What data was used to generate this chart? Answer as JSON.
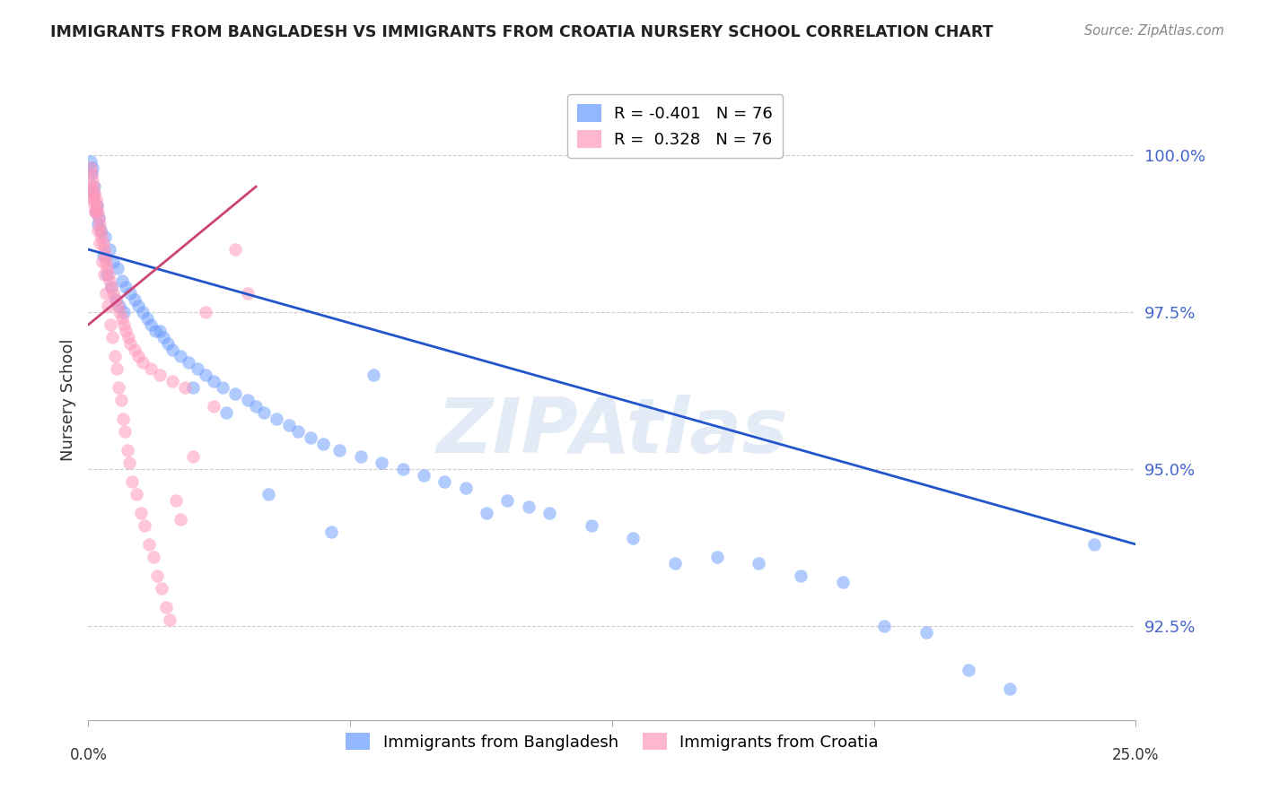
{
  "title": "IMMIGRANTS FROM BANGLADESH VS IMMIGRANTS FROM CROATIA NURSERY SCHOOL CORRELATION CHART",
  "source": "Source: ZipAtlas.com",
  "ylabel": "Nursery School",
  "yticks": [
    100.0,
    97.5,
    95.0,
    92.5
  ],
  "ytick_labels": [
    "100.0%",
    "97.5%",
    "95.0%",
    "92.5%"
  ],
  "xlim": [
    0.0,
    25.0
  ],
  "ylim": [
    91.0,
    101.2
  ],
  "blue_color": "#6699ff",
  "pink_color": "#ff99bb",
  "blue_line_color": "#2255cc",
  "pink_line_color": "#cc4477",
  "watermark": "ZIPAtlas",
  "blue_scatter_x": [
    0.1,
    0.15,
    0.2,
    0.25,
    0.3,
    0.4,
    0.5,
    0.6,
    0.7,
    0.8,
    0.9,
    1.0,
    1.1,
    1.2,
    1.3,
    1.4,
    1.5,
    1.6,
    1.7,
    1.8,
    1.9,
    2.0,
    2.2,
    2.4,
    2.6,
    2.8,
    3.0,
    3.2,
    3.5,
    3.8,
    4.0,
    4.2,
    4.5,
    4.8,
    5.0,
    5.3,
    5.6,
    6.0,
    6.5,
    7.0,
    7.5,
    8.0,
    8.5,
    9.0,
    9.5,
    10.0,
    10.5,
    11.0,
    12.0,
    13.0,
    14.0,
    15.0,
    16.0,
    17.0,
    18.0,
    19.0,
    20.0,
    21.0,
    22.0,
    0.05,
    0.08,
    0.12,
    0.18,
    0.22,
    0.35,
    0.45,
    0.55,
    0.65,
    0.75,
    0.85,
    2.5,
    3.3,
    4.3,
    5.8,
    6.8,
    24.0
  ],
  "blue_scatter_y": [
    99.8,
    99.5,
    99.2,
    99.0,
    98.8,
    98.7,
    98.5,
    98.3,
    98.2,
    98.0,
    97.9,
    97.8,
    97.7,
    97.6,
    97.5,
    97.4,
    97.3,
    97.2,
    97.2,
    97.1,
    97.0,
    96.9,
    96.8,
    96.7,
    96.6,
    96.5,
    96.4,
    96.3,
    96.2,
    96.1,
    96.0,
    95.9,
    95.8,
    95.7,
    95.6,
    95.5,
    95.4,
    95.3,
    95.2,
    95.1,
    95.0,
    94.9,
    94.8,
    94.7,
    94.3,
    94.5,
    94.4,
    94.3,
    94.1,
    93.9,
    93.5,
    93.6,
    93.5,
    93.3,
    93.2,
    92.5,
    92.4,
    91.8,
    91.5,
    99.9,
    99.7,
    99.4,
    99.1,
    98.9,
    98.4,
    98.1,
    97.9,
    97.7,
    97.6,
    97.5,
    96.3,
    95.9,
    94.6,
    94.0,
    96.5,
    93.8
  ],
  "pink_scatter_x": [
    0.05,
    0.08,
    0.1,
    0.12,
    0.15,
    0.18,
    0.2,
    0.22,
    0.25,
    0.28,
    0.3,
    0.32,
    0.35,
    0.38,
    0.4,
    0.42,
    0.45,
    0.48,
    0.5,
    0.55,
    0.6,
    0.65,
    0.7,
    0.75,
    0.8,
    0.85,
    0.9,
    0.95,
    1.0,
    1.1,
    1.2,
    1.3,
    1.5,
    1.7,
    2.0,
    2.3,
    2.8,
    3.5,
    0.13,
    0.17,
    0.23,
    0.27,
    0.33,
    0.37,
    0.43,
    0.47,
    0.53,
    0.57,
    0.63,
    0.68,
    0.73,
    0.78,
    0.83,
    0.88,
    0.93,
    0.98,
    1.05,
    1.15,
    1.25,
    1.35,
    1.45,
    1.55,
    1.65,
    1.75,
    1.85,
    1.95,
    2.1,
    2.2,
    2.5,
    3.0,
    3.8,
    0.06,
    0.09,
    0.11,
    0.14,
    0.16
  ],
  "pink_scatter_y": [
    99.8,
    99.7,
    99.6,
    99.5,
    99.4,
    99.3,
    99.2,
    99.1,
    99.0,
    98.9,
    98.8,
    98.7,
    98.6,
    98.5,
    98.4,
    98.3,
    98.2,
    98.1,
    98.0,
    97.9,
    97.8,
    97.7,
    97.6,
    97.5,
    97.4,
    97.3,
    97.2,
    97.1,
    97.0,
    96.9,
    96.8,
    96.7,
    96.6,
    96.5,
    96.4,
    96.3,
    97.5,
    98.5,
    99.3,
    99.1,
    98.8,
    98.6,
    98.3,
    98.1,
    97.8,
    97.6,
    97.3,
    97.1,
    96.8,
    96.6,
    96.3,
    96.1,
    95.8,
    95.6,
    95.3,
    95.1,
    94.8,
    94.6,
    94.3,
    94.1,
    93.8,
    93.6,
    93.3,
    93.1,
    92.8,
    92.6,
    94.5,
    94.2,
    95.2,
    96.0,
    97.8,
    99.5,
    99.4,
    99.3,
    99.2,
    99.1
  ],
  "blue_line_x": [
    0.0,
    25.0
  ],
  "blue_line_y": [
    98.5,
    93.8
  ],
  "pink_line_x": [
    0.0,
    4.0
  ],
  "pink_line_y": [
    97.3,
    99.5
  ]
}
